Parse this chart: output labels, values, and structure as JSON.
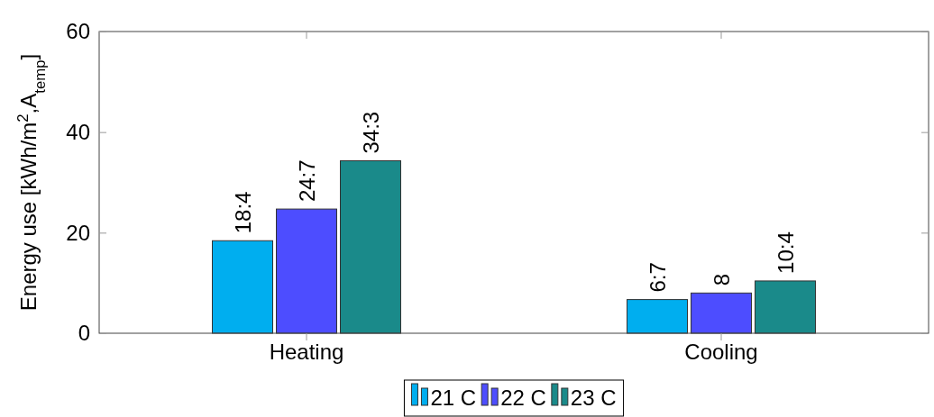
{
  "chart_data": {
    "type": "bar",
    "ylabel": "Energy use [kWh/m$^{2}$,A$_{temp}$]",
    "categories": [
      "Heating",
      "Cooling"
    ],
    "series": [
      {
        "name": "21 C",
        "color": "#00aeef",
        "values": [
          18.4,
          6.7
        ],
        "value_labels": [
          "18:4",
          "6:7"
        ]
      },
      {
        "name": "22 C",
        "color": "#4d4dff",
        "values": [
          24.7,
          8
        ],
        "value_labels": [
          "24:7",
          "8"
        ]
      },
      {
        "name": "23 C",
        "color": "#1a8a8a",
        "values": [
          34.3,
          10.4
        ],
        "value_labels": [
          "34:3",
          "10:4"
        ]
      }
    ],
    "ylim": [
      0,
      60
    ],
    "yticks": [
      0,
      20,
      40,
      60
    ],
    "legend": "bottom"
  }
}
